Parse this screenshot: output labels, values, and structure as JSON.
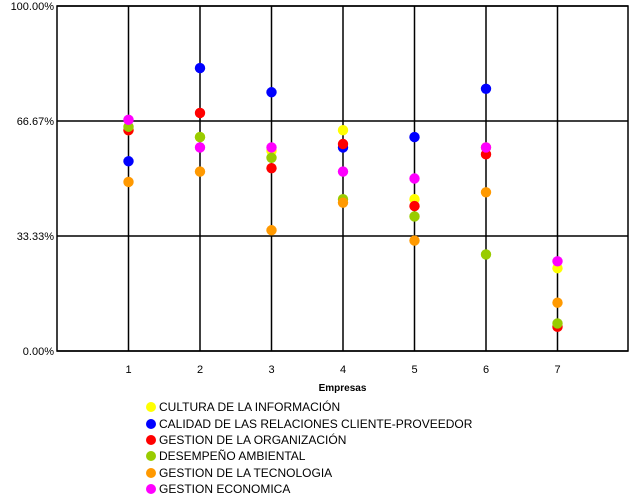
{
  "chart_data": {
    "type": "scatter",
    "title": "",
    "xlabel": "Empresas",
    "ylabel": "",
    "x_categories": [
      "1",
      "2",
      "3",
      "4",
      "5",
      "6",
      "7"
    ],
    "xlim": [
      0,
      7
    ],
    "ylim": [
      0,
      100
    ],
    "y_ticks": [
      0,
      33.33,
      66.67,
      100
    ],
    "y_tick_labels": [
      "0.00%",
      "33.33%",
      "66.67%",
      "100.00%"
    ],
    "grid": "vertical and horizontal",
    "legend_position": "bottom",
    "series": [
      {
        "name": "CULTURA DE LA INFORMACIÓN",
        "color": "#ffff00",
        "y": [
          64,
          62,
          58,
          64,
          44,
          59,
          24
        ]
      },
      {
        "name": "CALIDAD DE LAS RELACIONES CLIENTE-PROVEEDOR",
        "color": "#0000ff",
        "y": [
          55,
          82,
          75,
          59,
          62,
          76,
          null
        ]
      },
      {
        "name": "GESTION DE LA ORGANIZACIÓN",
        "color": "#ff0000",
        "y": [
          64,
          69,
          53,
          60,
          42,
          57,
          7
        ]
      },
      {
        "name": "DESEMPEÑO AMBIENTAL",
        "color": "#99cc00",
        "y": [
          65,
          62,
          56,
          44,
          39,
          28,
          8
        ]
      },
      {
        "name": "GESTION DE LA TECNOLOGIA",
        "color": "#ff9900",
        "y": [
          49,
          52,
          35,
          43,
          32,
          46,
          14
        ]
      },
      {
        "name": "GESTION ECONOMICA",
        "color": "#ff00ff",
        "y": [
          67,
          59,
          59,
          52,
          50,
          59,
          26
        ]
      }
    ]
  }
}
